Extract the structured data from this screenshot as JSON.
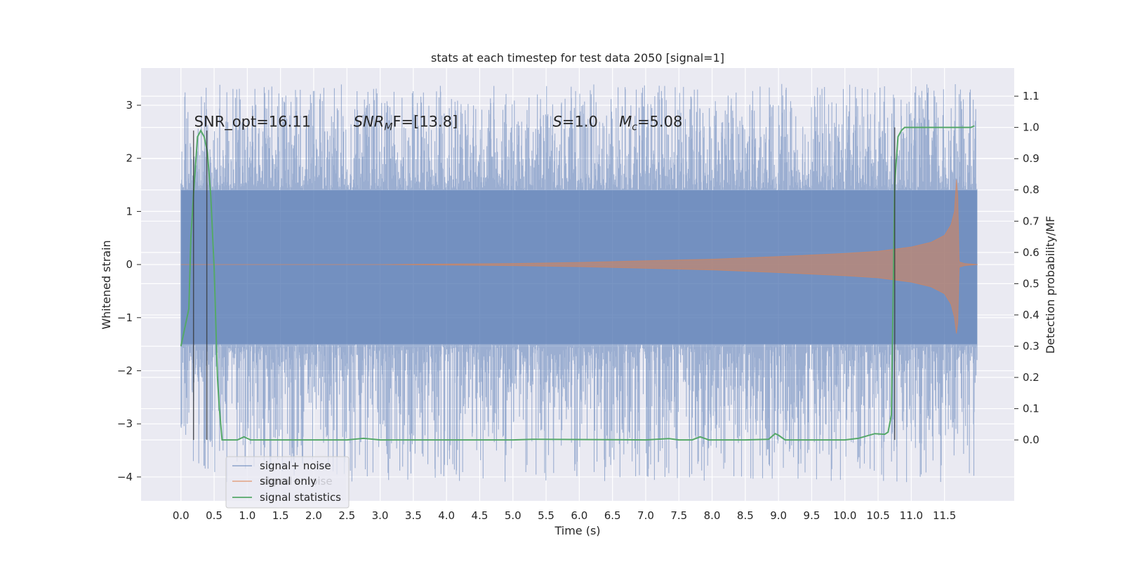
{
  "chart_data": {
    "type": "line",
    "title": "stats at each timestep for test data 2050 [signal=1]",
    "xlabel": "Time (s)",
    "ylabel": "Whitened strain",
    "y2label": "Detection probability/MF",
    "xlim": [
      -0.6,
      12.55
    ],
    "ylim": [
      -4.45,
      3.7
    ],
    "y2lim": [
      -0.195,
      1.19
    ],
    "xticks": [
      0.0,
      0.5,
      1.0,
      1.5,
      2.0,
      2.5,
      3.0,
      3.5,
      4.0,
      4.5,
      5.0,
      5.5,
      6.0,
      6.5,
      7.0,
      7.5,
      8.0,
      8.5,
      9.0,
      9.5,
      10.0,
      10.5,
      11.0,
      11.5
    ],
    "xtick_labels": [
      "0.0",
      "0.5",
      "1.0",
      "1.5",
      "2.0",
      "2.5",
      "3.0",
      "3.5",
      "4.0",
      "4.5",
      "5.0",
      "5.5",
      "6.0",
      "6.5",
      "7.0",
      "7.5",
      "8.0",
      "8.5",
      "9.0",
      "9.5",
      "10.0",
      "10.5",
      "11.0",
      "11.5"
    ],
    "yticks": [
      -4,
      -3,
      -2,
      -1,
      0,
      1,
      2,
      3
    ],
    "ytick_labels": [
      "−4",
      "−3",
      "−2",
      "−1",
      "0",
      "1",
      "2",
      "3"
    ],
    "y2ticks": [
      0.0,
      0.1,
      0.2,
      0.3,
      0.4,
      0.5,
      0.6,
      0.7,
      0.8,
      0.9,
      1.0,
      1.1
    ],
    "y2tick_labels": [
      "0.0",
      "0.1",
      "0.2",
      "0.3",
      "0.4",
      "0.5",
      "0.6",
      "0.7",
      "0.8",
      "0.9",
      "1.0",
      "1.1"
    ],
    "grid": true,
    "legend_position": "lower-left",
    "series": [
      {
        "name": "signal+ noise",
        "color": "#4c72b0",
        "kind": "noise-band",
        "x_range": [
          0.0,
          11.99
        ],
        "band_y": [
          -1.5,
          1.4
        ],
        "spike_y_range": [
          -4.1,
          3.4
        ]
      },
      {
        "name": "signal only",
        "color": "#dd8452",
        "kind": "chirp",
        "x": [
          0.0,
          3.0,
          5.0,
          6.0,
          7.0,
          8.0,
          9.0,
          10.0,
          10.5,
          11.0,
          11.3,
          11.5,
          11.6,
          11.65,
          11.68,
          11.7,
          11.72,
          11.8,
          12.0
        ],
        "upper": [
          0.0,
          0.0,
          0.02,
          0.04,
          0.07,
          0.1,
          0.15,
          0.21,
          0.25,
          0.33,
          0.42,
          0.55,
          0.75,
          1.0,
          1.6,
          1.3,
          0.05,
          0.02,
          0.0
        ],
        "lower": [
          0.0,
          0.0,
          -0.02,
          -0.04,
          -0.07,
          -0.1,
          -0.15,
          -0.21,
          -0.25,
          -0.33,
          -0.42,
          -0.55,
          -0.75,
          -1.0,
          -1.3,
          -1.1,
          -0.05,
          -0.02,
          0.0
        ]
      },
      {
        "name": "signal statistics",
        "color": "#55a868",
        "axis": "secondary",
        "x": [
          0.0,
          0.12,
          0.15,
          0.2,
          0.25,
          0.3,
          0.35,
          0.4,
          0.45,
          0.5,
          0.55,
          0.58,
          0.62,
          0.7,
          0.85,
          0.95,
          1.05,
          2.5,
          2.75,
          3.0,
          5.0,
          5.3,
          7.0,
          7.35,
          7.5,
          7.7,
          7.82,
          7.95,
          8.5,
          8.85,
          8.95,
          9.0,
          9.1,
          10.0,
          10.2,
          10.45,
          10.6,
          10.65,
          10.7,
          10.73,
          10.75,
          10.8,
          10.85,
          10.9,
          11.0,
          11.5,
          11.9,
          11.95
        ],
        "y": [
          0.3,
          0.42,
          0.65,
          0.82,
          0.97,
          0.99,
          0.97,
          0.92,
          0.78,
          0.55,
          0.2,
          0.1,
          0.0,
          0.0,
          0.0,
          0.01,
          0.0,
          0.0,
          0.005,
          0.0,
          0.0,
          0.002,
          0.0,
          0.004,
          0.0,
          0.0,
          0.01,
          0.0,
          0.0,
          0.002,
          0.02,
          0.015,
          0.0,
          0.0,
          0.005,
          0.02,
          0.018,
          0.025,
          0.08,
          0.5,
          0.82,
          0.97,
          0.99,
          1.0,
          1.0,
          1.0,
          1.0,
          1.005
        ]
      }
    ],
    "vlines": [
      {
        "x": 0.19,
        "y2_from": 0.0,
        "y2_to": 0.99
      },
      {
        "x": 0.39,
        "y2_from": 0.0,
        "y2_to": 0.99
      },
      {
        "x": 10.75,
        "y2_from": 0.0,
        "y2_to": 1.0
      }
    ],
    "annotations": [
      {
        "text": "SNR_opt=16.11",
        "x": 0.2,
        "y": 2.6
      },
      {
        "text_base": "SNR",
        "text_sub": "M",
        "text_tail": "F=[13.8]",
        "x": 2.6,
        "y": 2.6
      },
      {
        "text_base": "S",
        "text_tail": "=1.0",
        "x": 5.6,
        "y": 2.6
      },
      {
        "text_base": "M",
        "text_sub": "c",
        "text_tail": "=5.08",
        "x": 6.6,
        "y": 2.6
      }
    ],
    "legend_ghost_text": "signal+ noise"
  }
}
